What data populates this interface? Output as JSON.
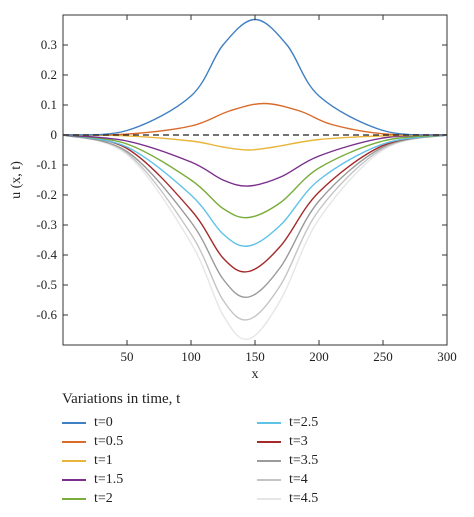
{
  "chart_data": {
    "type": "line",
    "xlabel": "x",
    "ylabel": "u (x, t)",
    "xlim": [
      0,
      300
    ],
    "ylim": [
      -0.7,
      0.4
    ],
    "xticks": [
      "50",
      "100",
      "150",
      "200",
      "250",
      "300"
    ],
    "yticks": [
      "0.3",
      "0.2",
      "0.1",
      "0",
      "-0.1",
      "-0.2",
      "-0.3",
      "-0.4",
      "-0.5",
      "-0.6"
    ],
    "reference_line": {
      "y": 0,
      "style": "dashed"
    },
    "legend_title": "Variations in time, t",
    "legend_placement": "bottom",
    "grid": false,
    "series": [
      {
        "name": "t=0",
        "color": "#3f7fc4",
        "x": [
          0,
          50,
          100,
          125,
          150,
          175,
          200,
          250,
          300
        ],
        "values": [
          0.0,
          0.015,
          0.13,
          0.3,
          0.385,
          0.3,
          0.13,
          0.015,
          0.0
        ]
      },
      {
        "name": "t=0.5",
        "color": "#d96b2b",
        "x": [
          0,
          50,
          100,
          130,
          157,
          185,
          210,
          250,
          300
        ],
        "values": [
          0.0,
          0.003,
          0.03,
          0.08,
          0.105,
          0.08,
          0.035,
          0.004,
          0.0
        ]
      },
      {
        "name": "t=1",
        "color": "#e8b53a",
        "x": [
          0,
          50,
          100,
          125,
          145,
          165,
          200,
          250,
          300
        ],
        "values": [
          0.0,
          -0.003,
          -0.02,
          -0.04,
          -0.05,
          -0.04,
          -0.015,
          -0.003,
          0.0
        ]
      },
      {
        "name": "t=1.5",
        "color": "#7b2f8c",
        "x": [
          0,
          50,
          100,
          125,
          145,
          170,
          200,
          250,
          300
        ],
        "values": [
          0.0,
          -0.02,
          -0.09,
          -0.15,
          -0.17,
          -0.14,
          -0.07,
          -0.01,
          0.0
        ]
      },
      {
        "name": "t=2",
        "color": "#79ad3c",
        "x": [
          0,
          50,
          100,
          125,
          145,
          170,
          200,
          250,
          300
        ],
        "values": [
          0.0,
          -0.03,
          -0.15,
          -0.245,
          -0.275,
          -0.225,
          -0.11,
          -0.02,
          0.0
        ]
      },
      {
        "name": "t=2.5",
        "color": "#5fc2e7",
        "x": [
          0,
          50,
          100,
          125,
          145,
          170,
          200,
          250,
          300
        ],
        "values": [
          0.0,
          -0.04,
          -0.2,
          -0.33,
          -0.37,
          -0.3,
          -0.15,
          -0.03,
          0.0
        ]
      },
      {
        "name": "t=3",
        "color": "#a52a2a",
        "x": [
          0,
          50,
          100,
          125,
          145,
          170,
          200,
          250,
          300
        ],
        "values": [
          0.0,
          -0.045,
          -0.25,
          -0.41,
          -0.455,
          -0.37,
          -0.19,
          -0.035,
          0.0
        ]
      },
      {
        "name": "t=3.5",
        "color": "#9a9a9a",
        "x": [
          0,
          50,
          100,
          125,
          145,
          170,
          200,
          250,
          300
        ],
        "values": [
          0.0,
          -0.055,
          -0.29,
          -0.48,
          -0.54,
          -0.44,
          -0.22,
          -0.04,
          0.0
        ]
      },
      {
        "name": "t=4",
        "color": "#c4c4c4",
        "x": [
          0,
          50,
          100,
          125,
          145,
          170,
          200,
          250,
          300
        ],
        "values": [
          0.0,
          -0.06,
          -0.33,
          -0.55,
          -0.615,
          -0.5,
          -0.25,
          -0.045,
          0.0
        ]
      },
      {
        "name": "t=4.5",
        "color": "#e6e6e6",
        "x": [
          0,
          50,
          100,
          125,
          145,
          170,
          200,
          250,
          300
        ],
        "values": [
          0.0,
          -0.065,
          -0.36,
          -0.6,
          -0.68,
          -0.55,
          -0.28,
          -0.05,
          0.0
        ]
      }
    ]
  }
}
